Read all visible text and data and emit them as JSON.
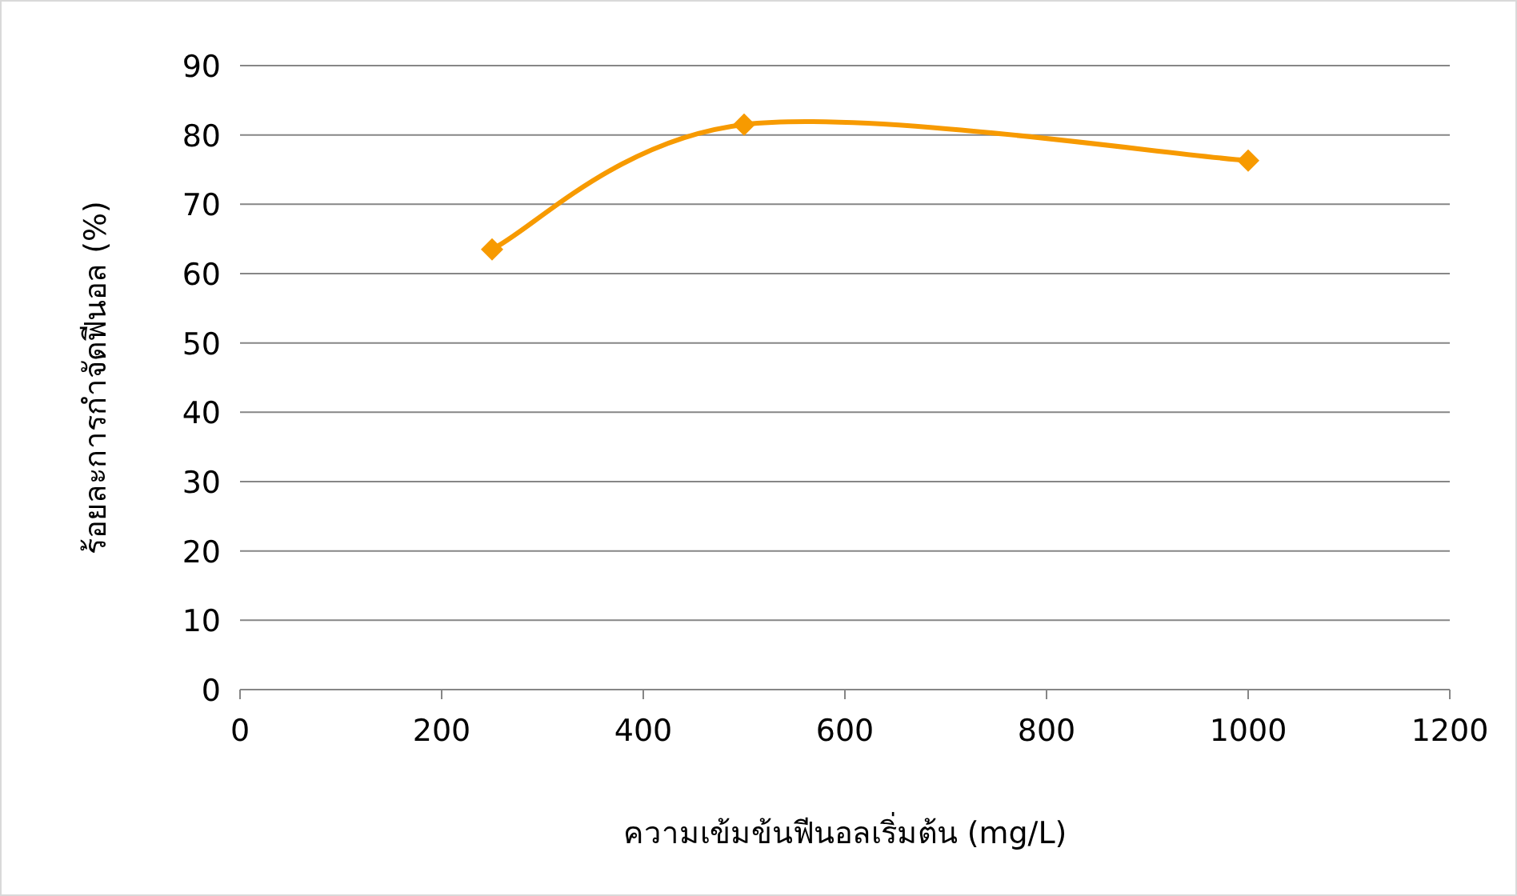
{
  "chart_data": {
    "type": "line",
    "xlabel": "ความเข้มข้นฟีนอลเริ่มต้น (mg/L)",
    "ylabel": "ร้อยละการกำจัดฟีนอล (%)",
    "x": [
      250,
      500,
      1000
    ],
    "series": [
      {
        "color": "#f79a00",
        "values": [
          63.5,
          81.5,
          76.3
        ]
      }
    ],
    "xlim": [
      0,
      1200
    ],
    "xticks": [
      0,
      200,
      400,
      600,
      800,
      1000,
      1200
    ],
    "ylim": [
      0,
      90
    ],
    "yticks": [
      0,
      10,
      20,
      30,
      40,
      50,
      60,
      70,
      80,
      90
    ],
    "grid": "y",
    "marker": "diamond",
    "line_style": "solid"
  }
}
